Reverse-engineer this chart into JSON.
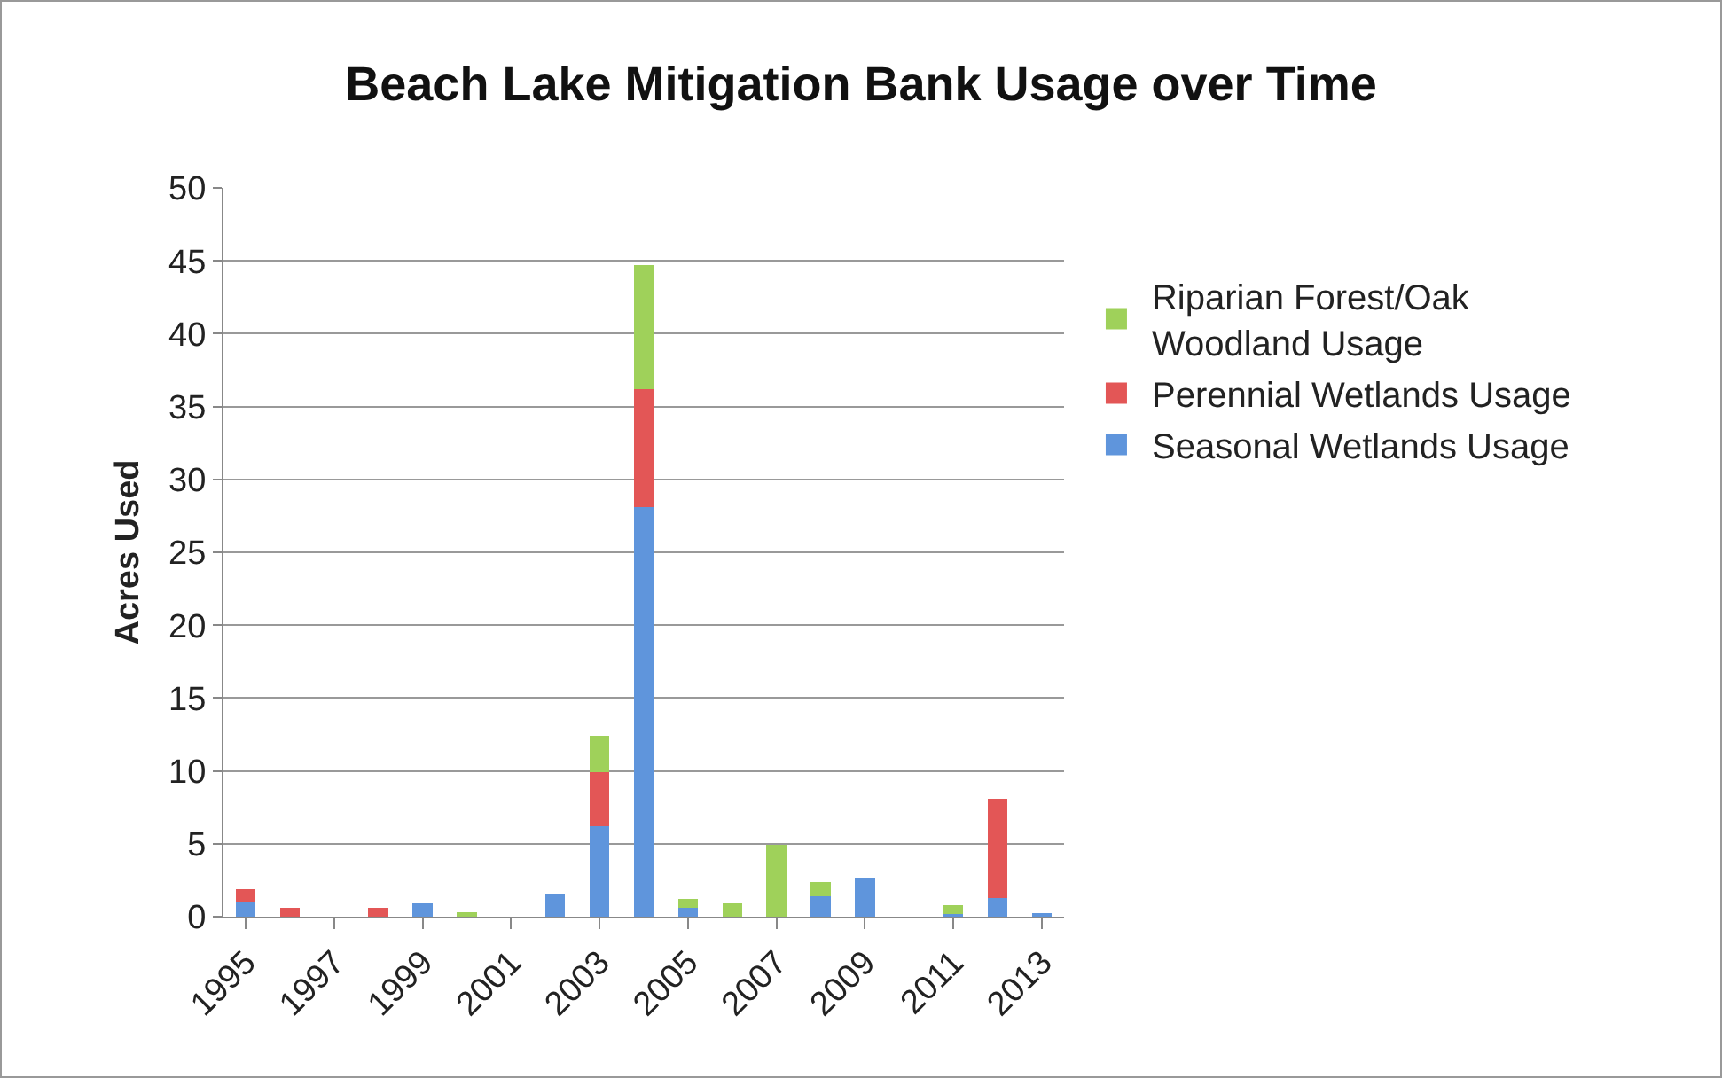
{
  "chart_data": {
    "type": "bar",
    "stacked": true,
    "title": "Beach Lake Mitigation Bank Usage over Time",
    "ylabel": "Acres Used",
    "categories": [
      "1995",
      null,
      "1997",
      null,
      "1999",
      null,
      "2001",
      null,
      "2003",
      null,
      "2005",
      null,
      "2007",
      null,
      "2009",
      null,
      "2011",
      null,
      "2013"
    ],
    "series": [
      {
        "name": "Seasonal Wetlands Usage",
        "color": "#5f95dc",
        "values": [
          1.0,
          null,
          null,
          null,
          0.9,
          null,
          null,
          1.6,
          6.2,
          28.1,
          0.6,
          null,
          null,
          1.4,
          2.7,
          null,
          0.2,
          1.3,
          0.2
        ]
      },
      {
        "name": "Perennial Wetlands Usage",
        "color": "#e35656",
        "values": [
          0.9,
          0.6,
          null,
          0.6,
          null,
          null,
          null,
          null,
          3.7,
          8.1,
          null,
          null,
          null,
          null,
          null,
          null,
          null,
          6.8,
          null
        ]
      },
      {
        "name": "Riparian Forest/Oak Woodland Usage",
        "color": "#9fd15a",
        "values": [
          null,
          null,
          null,
          null,
          null,
          0.3,
          null,
          null,
          2.5,
          8.5,
          0.6,
          0.9,
          4.9,
          1.0,
          null,
          null,
          0.6,
          null,
          null
        ]
      }
    ],
    "ylim": [
      0,
      50
    ],
    "yticks": [
      0,
      5,
      10,
      15,
      20,
      25,
      30,
      35,
      40,
      45,
      50
    ],
    "grid": "y",
    "legend": "right"
  }
}
